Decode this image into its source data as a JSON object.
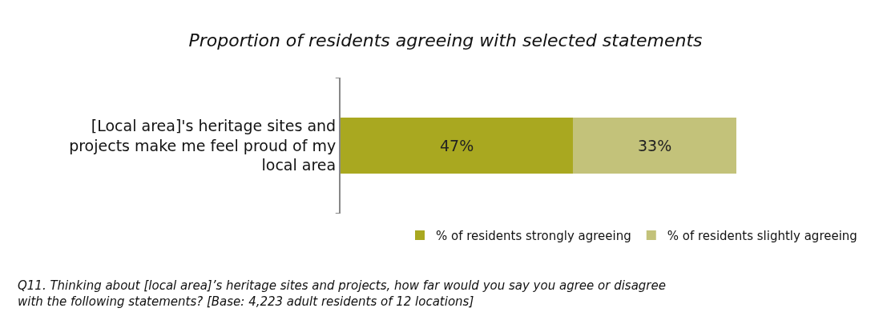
{
  "chart_data": {
    "type": "bar",
    "orientation": "horizontal",
    "stacked": true,
    "title": "Proportion of residents agreeing with selected statements",
    "categories": [
      "[Local area]'s heritage sites and projects make me feel proud of my local area"
    ],
    "series": [
      {
        "name": "% of residents strongly agreeing",
        "color": "#a9a820",
        "values": [
          47
        ],
        "value_labels": [
          "47%"
        ]
      },
      {
        "name": "% of residents slightly agreeing",
        "color": "#c3c27a",
        "values": [
          33
        ],
        "value_labels": [
          "33%"
        ]
      }
    ],
    "tick_labels": "y",
    "legend": "bottom right",
    "annotations": [
      "Q11. Thinking about [local area]’s heritage sites and projects, how far would you say you agree or disagree with the following statements? [Base: 4,223 adult residents of 12 locations]"
    ]
  }
}
